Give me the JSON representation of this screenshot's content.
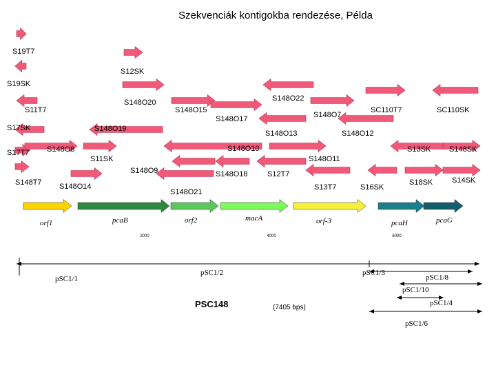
{
  "title": "Szekvenciák kontigokba rendezése, Példa",
  "colors": {
    "read": "#f05a78",
    "read_stroke": "#b8324e",
    "gene_yellow": "#ffd400",
    "gene_green_dark": "#2d8a3c",
    "gene_green_mid": "#5ac85a",
    "gene_green_light": "#7dfa5c",
    "gene_yellow2": "#f6f03a",
    "gene_teal": "#1a7f8a",
    "gene_teal_dark": "#115e6e",
    "line": "#000000"
  },
  "reads": [
    {
      "name": "S19T7",
      "dir": "right"
    },
    {
      "name": "S12SK",
      "dir": "right"
    },
    {
      "name": "S19SK",
      "dir": "left"
    },
    {
      "name": "S148O22",
      "dir": "left"
    },
    {
      "name": "S148O20",
      "dir": "right"
    },
    {
      "name": "S11T7",
      "dir": "left"
    },
    {
      "name": "S148O15",
      "dir": "right"
    },
    {
      "name": "S148O17",
      "dir": "right"
    },
    {
      "name": "S148O7",
      "dir": "right"
    },
    {
      "name": "SC110T7",
      "dir": "right"
    },
    {
      "name": "SC110SK",
      "dir": "left"
    },
    {
      "name": "S17SK",
      "dir": "left"
    },
    {
      "name": "S148O19",
      "dir": "left"
    },
    {
      "name": "S148O13",
      "dir": "left"
    },
    {
      "name": "S148O12",
      "dir": "left"
    },
    {
      "name": "S17T7",
      "dir": "right"
    },
    {
      "name": "S148O8",
      "dir": "right"
    },
    {
      "name": "S11SK",
      "dir": "right"
    },
    {
      "name": "S148O10",
      "dir": "left"
    },
    {
      "name": "S148O11",
      "dir": "right"
    },
    {
      "name": "S13SK",
      "dir": "left"
    },
    {
      "name": "S148SK",
      "dir": "right"
    },
    {
      "name": "S148O9",
      "dir": "left"
    },
    {
      "name": "S148O18",
      "dir": "left"
    },
    {
      "name": "S12T7",
      "dir": "left"
    },
    {
      "name": "S148T7",
      "dir": "right"
    },
    {
      "name": "S148O14",
      "dir": "right"
    },
    {
      "name": "S148O21",
      "dir": "left"
    },
    {
      "name": "S13T7",
      "dir": "left"
    },
    {
      "name": "S16SK",
      "dir": "left"
    },
    {
      "name": "S18SK",
      "dir": "right"
    },
    {
      "name": "S14SK",
      "dir": "right"
    }
  ],
  "genes": [
    {
      "name": "orf1"
    },
    {
      "name": "pcaB"
    },
    {
      "name": "orf2"
    },
    {
      "name": "macA"
    },
    {
      "name": "orf-3"
    },
    {
      "name": "pcaH"
    },
    {
      "name": "pcaG"
    }
  ],
  "ruler": {
    "ticks": [
      "2000",
      "4000",
      "6000"
    ]
  },
  "plasmid": {
    "name": "PSC148",
    "length": "(7405 bps)"
  },
  "subclones": [
    {
      "name": "pSC1/1"
    },
    {
      "name": "pSC1/2"
    },
    {
      "name": "pSC1/3"
    },
    {
      "name": "pSC1/8"
    },
    {
      "name": "pSC1/10"
    },
    {
      "name": "pSC1/4"
    },
    {
      "name": "pSC1/6"
    }
  ]
}
